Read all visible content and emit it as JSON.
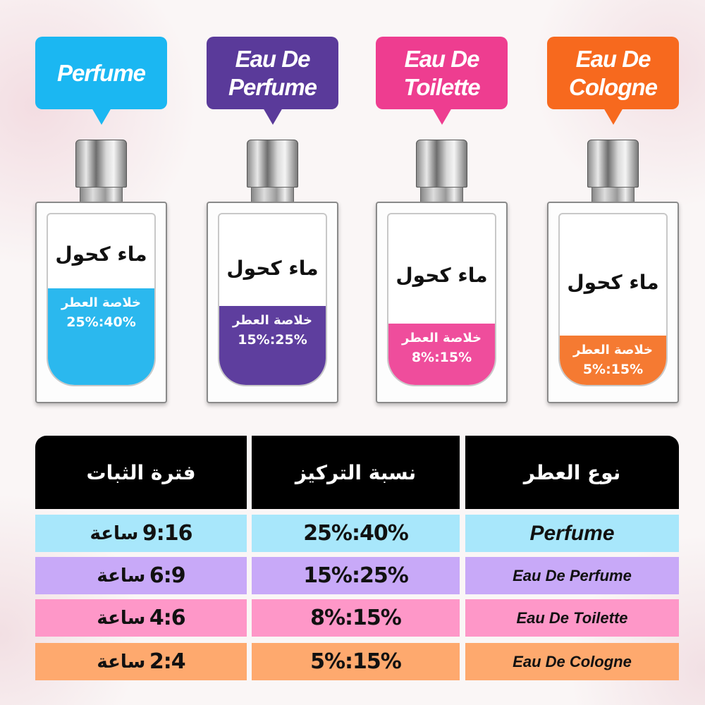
{
  "colors": {
    "perfume": "#1bb7f2",
    "edp": "#5a3a9a",
    "edt": "#ee3d90",
    "edc": "#f7691e"
  },
  "bubbles": [
    {
      "label": "Perfume",
      "color": "#1bb7f2"
    },
    {
      "label": "Eau De Perfume",
      "color": "#5a3a9a"
    },
    {
      "label": "Eau De Toilette",
      "color": "#ee3d90"
    },
    {
      "label": "Eau De Cologne",
      "color": "#f7691e"
    }
  ],
  "bottles": [
    {
      "water_label": "ماء كحول",
      "essence_label": "خلاصة العطر",
      "concentration": "25%:40%",
      "liquid_color": "#2bb8ee",
      "fill_level": 0.55
    },
    {
      "water_label": "ماء كحول",
      "essence_label": "خلاصة العطر",
      "concentration": "15%:25%",
      "liquid_color": "#5e3e9e",
      "fill_level": 0.45
    },
    {
      "water_label": "ماء كحول",
      "essence_label": "خلاصة العطر",
      "concentration": "8%:15%",
      "liquid_color": "#ef4d9c",
      "fill_level": 0.35
    },
    {
      "water_label": "ماء كحول",
      "essence_label": "خلاصة العطر",
      "concentration": "5%:15%",
      "liquid_color": "#f57a32",
      "fill_level": 0.28
    }
  ],
  "table": {
    "headers": {
      "duration": "فترة الثبات",
      "concentration": "نسبة التركيز",
      "type": "نوع العطر"
    },
    "rows": [
      {
        "type": "Perfume",
        "concentration": "25%:40%",
        "duration": "9:16",
        "unit": "ساعة",
        "color": "#a8e7fb"
      },
      {
        "type": "Eau De Perfume",
        "concentration": "15%:25%",
        "duration": "6:9",
        "unit": "ساعة",
        "color": "#c8a9f8"
      },
      {
        "type": "Eau De Toilette",
        "concentration": "8%:15%",
        "duration": "4:6",
        "unit": "ساعة",
        "color": "#fe97c8"
      },
      {
        "type": "Eau De Cologne",
        "concentration": "5%:15%",
        "duration": "2:4",
        "unit": "ساعة",
        "color": "#fea96e"
      }
    ]
  }
}
